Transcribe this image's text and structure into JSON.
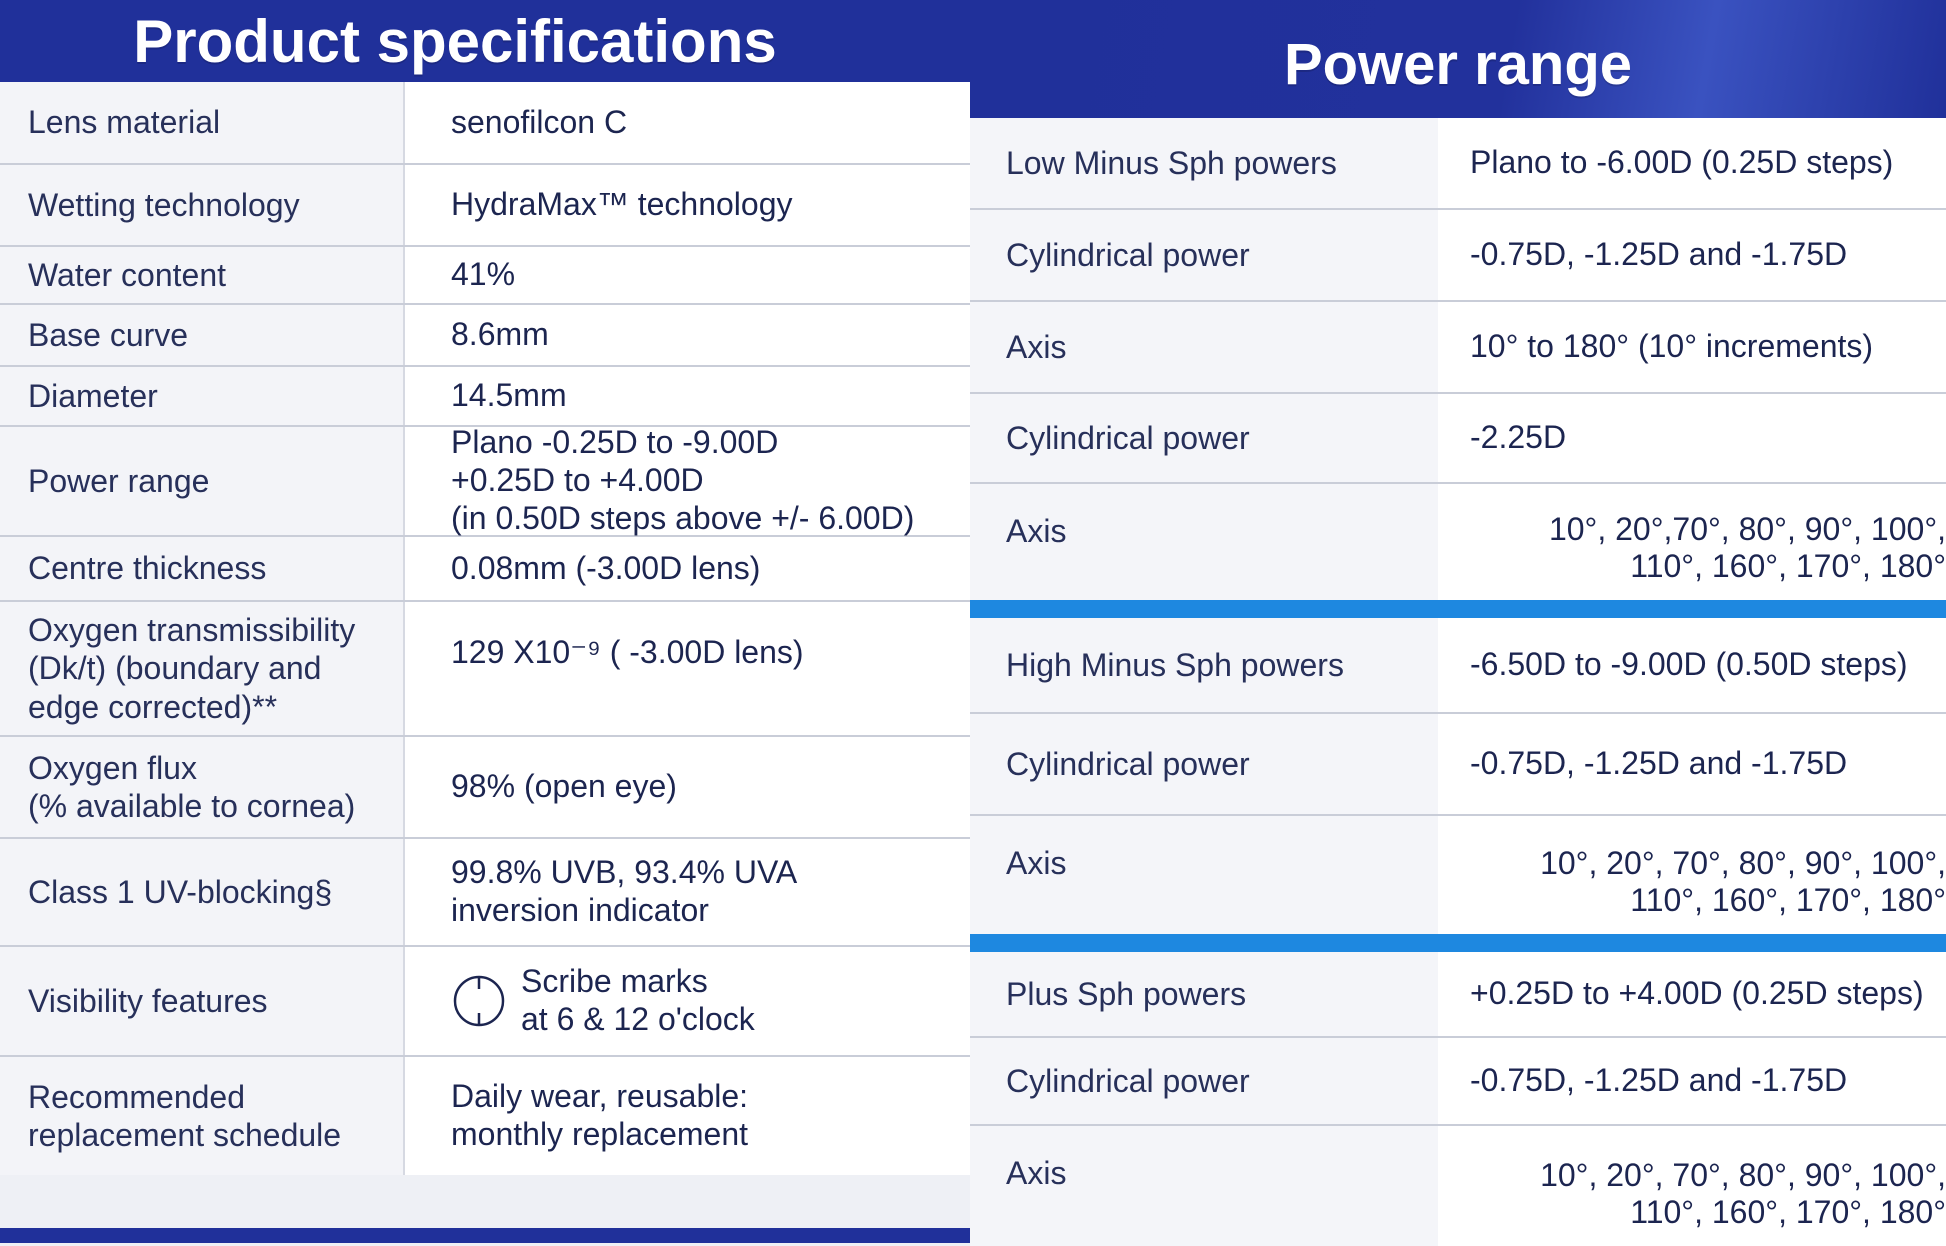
{
  "product_specifications": {
    "title": "Product specifications",
    "rows": [
      {
        "label": "Lens material",
        "value": "senofilcon C"
      },
      {
        "label": "Wetting technology",
        "value": "HydraMax™ technology"
      },
      {
        "label": "Water content",
        "value": "41%"
      },
      {
        "label": "Base curve",
        "value": "8.6mm"
      },
      {
        "label": "Diameter",
        "value": "14.5mm"
      },
      {
        "label": "Power range",
        "value_lines": [
          "Plano -0.25D to -9.00D",
          "+0.25D to +4.00D",
          "(in 0.50D steps above +/- 6.00D)"
        ]
      },
      {
        "label": "Centre thickness",
        "value": "0.08mm (-3.00D lens)"
      },
      {
        "label_lines": [
          "Oxygen transmissibility",
          "(Dk/t) (boundary and",
          "edge corrected)**"
        ],
        "value": "129 X10⁻⁹ ( -3.00D lens)"
      },
      {
        "label_lines": [
          "Oxygen flux",
          "(% available to cornea)"
        ],
        "value": "98% (open eye)"
      },
      {
        "label": "Class 1 UV-blocking§",
        "value_lines": [
          "99.8% UVB, 93.4% UVA",
          "inversion indicator"
        ]
      },
      {
        "label": "Visibility features",
        "value_lines": [
          "Scribe marks",
          "at 6 & 12 o'clock"
        ],
        "icon": "scribe-mark-icon"
      },
      {
        "label_lines": [
          "Recommended",
          "replacement schedule"
        ],
        "value_lines": [
          "Daily wear, reusable:",
          "monthly replacement"
        ]
      }
    ]
  },
  "power_range": {
    "title": "Power range",
    "groups": [
      {
        "rows": [
          {
            "label": "Low Minus Sph powers",
            "value": "Plano to -6.00D (0.25D steps)"
          },
          {
            "label": "Cylindrical power",
            "value": "-0.75D, -1.25D and -1.75D"
          },
          {
            "label": "Axis",
            "value": "10° to 180° (10° increments)"
          },
          {
            "label": "Cylindrical power",
            "value": "-2.25D"
          },
          {
            "label": "Axis",
            "value_lines": [
              "10°, 20°,70°, 80°, 90°, 100°,",
              "110°, 160°, 170°, 180°"
            ]
          }
        ]
      },
      {
        "rows": [
          {
            "label": "High Minus Sph powers",
            "value": "-6.50D to -9.00D (0.50D steps)"
          },
          {
            "label": "Cylindrical power",
            "value": "-0.75D, -1.25D and -1.75D"
          },
          {
            "label": "Axis",
            "value_lines": [
              "10°, 20°, 70°, 80°, 90°, 100°,",
              "110°, 160°, 170°, 180°"
            ]
          }
        ]
      },
      {
        "rows": [
          {
            "label": "Plus Sph powers",
            "value": "+0.25D to +4.00D (0.25D steps)"
          },
          {
            "label": "Cylindrical power",
            "value": "-0.75D, -1.25D and -1.75D"
          },
          {
            "label": "Axis",
            "value_lines": [
              "10°, 20°, 70°, 80°, 90°, 100°,",
              "110°, 160°, 170°, 180°"
            ]
          }
        ]
      }
    ]
  },
  "colors": {
    "header_navy": "#20309a",
    "accent_blue": "#1e88e0"
  }
}
